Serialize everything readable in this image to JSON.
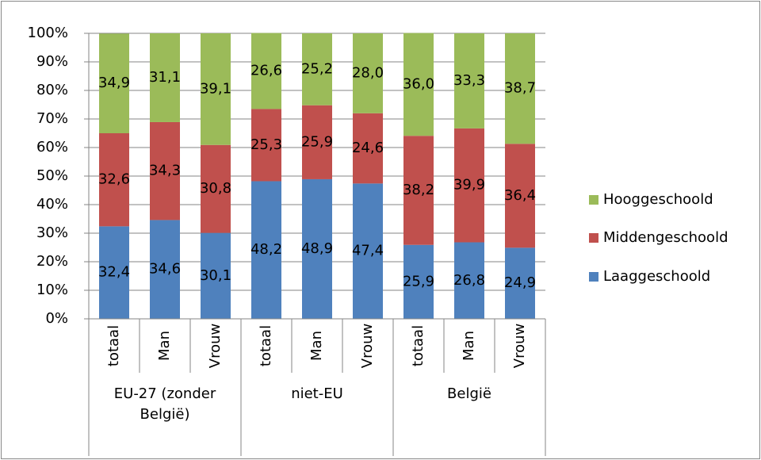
{
  "chart_data": {
    "type": "stacked_bar",
    "categories": [
      "totaal",
      "Man",
      "Vrouw",
      "totaal",
      "Man",
      "Vrouw",
      "totaal",
      "Man",
      "Vrouw"
    ],
    "groups": [
      "EU-27 (zonder België)",
      "niet-EU",
      "België"
    ],
    "series": [
      {
        "name": "Laaggeschoold",
        "color": "#4f81bd",
        "values": [
          32.4,
          34.6,
          30.1,
          48.2,
          48.9,
          47.4,
          25.9,
          26.8,
          24.9
        ],
        "value_labels": [
          "32,4",
          "34,6",
          "30,1",
          "48,2",
          "48,9",
          "47,4",
          "25,9",
          "26,8",
          "24,9"
        ]
      },
      {
        "name": "Middengeschoold",
        "color": "#c0504d",
        "values": [
          32.6,
          34.3,
          30.8,
          25.3,
          25.9,
          24.6,
          38.2,
          39.9,
          36.4
        ],
        "value_labels": [
          "32,6",
          "34,3",
          "30,8",
          "25,3",
          "25,9",
          "24,6",
          "38,2",
          "39,9",
          "36,4"
        ]
      },
      {
        "name": "Hooggeschoold",
        "color": "#9bbb59",
        "values": [
          34.9,
          31.1,
          39.1,
          26.6,
          25.2,
          28.0,
          36.0,
          33.3,
          38.7
        ],
        "value_labels": [
          "34,9",
          "31,1",
          "39,1",
          "26,6",
          "25,2",
          "28,0",
          "36,0",
          "33,3",
          "38,7"
        ]
      }
    ],
    "ylim": [
      0,
      100
    ],
    "yticks": [
      {
        "value": 0,
        "label": "0%"
      },
      {
        "value": 10,
        "label": "10%"
      },
      {
        "value": 20,
        "label": "20%"
      },
      {
        "value": 30,
        "label": "30%"
      },
      {
        "value": 40,
        "label": "40%"
      },
      {
        "value": 50,
        "label": "50%"
      },
      {
        "value": 60,
        "label": "60%"
      },
      {
        "value": 70,
        "label": "70%"
      },
      {
        "value": 80,
        "label": "80%"
      },
      {
        "value": 90,
        "label": "90%"
      },
      {
        "value": 100,
        "label": "100%"
      }
    ],
    "grid": true,
    "legend": "right"
  }
}
